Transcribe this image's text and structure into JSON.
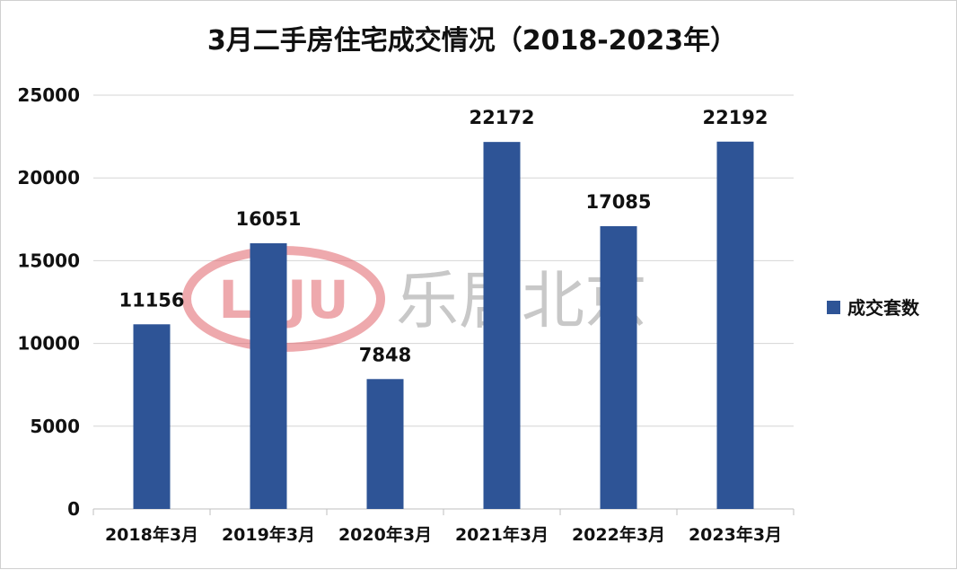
{
  "chart_data": {
    "type": "bar",
    "title": "3月二手房住宅成交情况（2018-2023年）",
    "categories": [
      "2018年3月",
      "2019年3月",
      "2020年3月",
      "2021年3月",
      "2022年3月",
      "2023年3月"
    ],
    "series": [
      {
        "name": "成交套数",
        "values": [
          11156,
          16051,
          7848,
          22172,
          17085,
          22192
        ],
        "color": "#2e5496"
      }
    ],
    "ylim": [
      0,
      25000
    ],
    "yticks": [
      0,
      5000,
      10000,
      15000,
      20000,
      25000
    ],
    "grid": true,
    "legend_position": "right",
    "data_labels": true
  },
  "watermark": {
    "logo_text": "LEJU",
    "text": "乐居北京",
    "logo_color": "#e0626a",
    "text_color": "#9a9a9a"
  }
}
